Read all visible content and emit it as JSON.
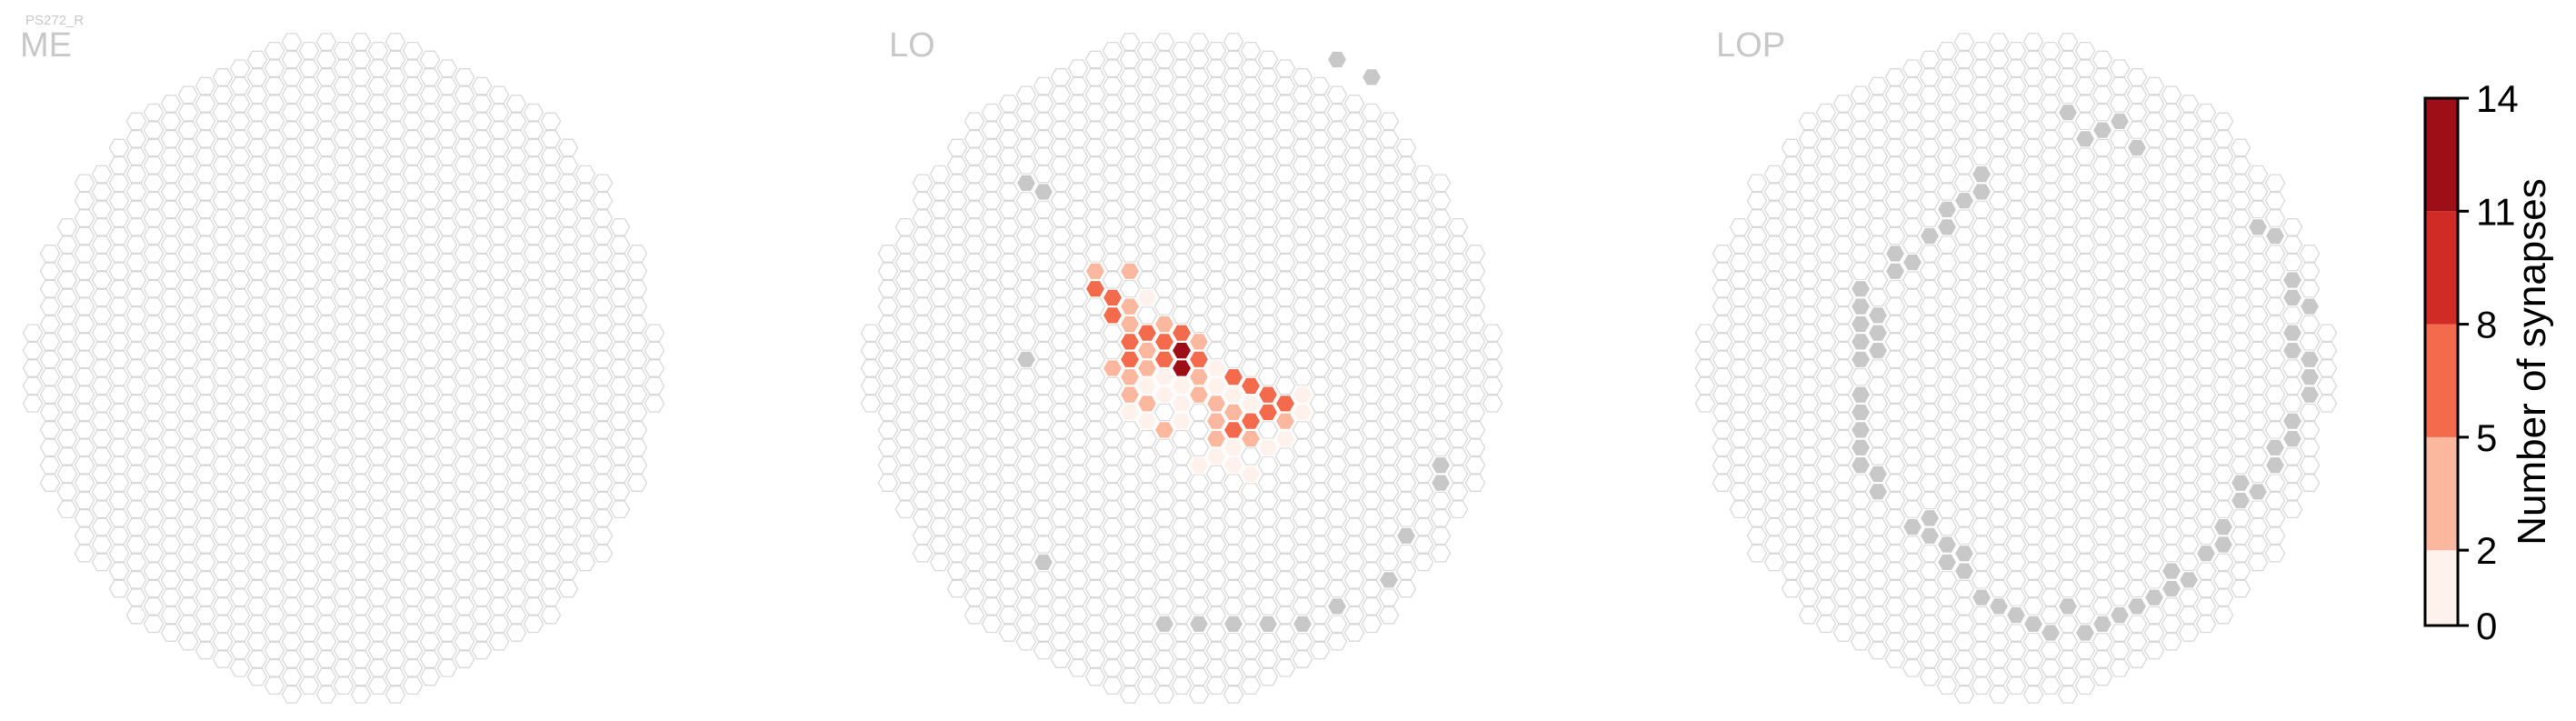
{
  "cell_type": "PS272_R",
  "colors": {
    "empty_fill": "#ffffff",
    "empty_stroke": "#d9d9d9",
    "boundary_fill": "#c8c8c8",
    "label": "#c8c8c8",
    "bins": [
      "#fff1ec",
      "#fbb89e",
      "#f46a4c",
      "#d02b25",
      "#9e0e17"
    ]
  },
  "chart_data": {
    "type": "heatmap",
    "value_label": "Number of synapses",
    "scale": {
      "min": 0,
      "max": 14,
      "bin_edges": [
        0,
        2,
        5,
        8,
        11,
        14
      ],
      "ticks": [
        "0",
        "2",
        "5",
        "8",
        "11",
        "14"
      ]
    },
    "panels": [
      {
        "region": "ME",
        "boundary_cells": [],
        "cells": []
      },
      {
        "region": "LO",
        "boundary_cells": [
          [
            -9,
            10
          ],
          [
            -8,
            10
          ],
          [
            -9,
            0
          ],
          [
            -8,
            -11
          ],
          [
            -1,
            -15
          ],
          [
            1,
            -15
          ],
          [
            3,
            -15
          ],
          [
            5,
            -15
          ],
          [
            7,
            -15
          ],
          [
            9,
            -14
          ],
          [
            12,
            -12
          ],
          [
            13,
            -10
          ],
          [
            15,
            -7
          ],
          [
            15,
            -6
          ],
          [
            9,
            17
          ],
          [
            11,
            16
          ]
        ],
        "cells": [
          {
            "ho": -5,
            "vo": 5,
            "value": 4
          },
          {
            "ho": -5,
            "vo": 4,
            "value": 5
          },
          {
            "ho": -4,
            "vo": 4,
            "value": 5
          },
          {
            "ho": -4,
            "vo": 3,
            "value": 6
          },
          {
            "ho": -3,
            "vo": 5,
            "value": 4
          },
          {
            "ho": -2,
            "vo": 4,
            "value": 1
          },
          {
            "ho": -3,
            "vo": 3,
            "value": 4
          },
          {
            "ho": -3,
            "vo": 2,
            "value": 3
          },
          {
            "ho": -2,
            "vo": 2,
            "value": 5
          },
          {
            "ho": -1,
            "vo": 2,
            "value": 4
          },
          {
            "ho": 0,
            "vo": 2,
            "value": 7
          },
          {
            "ho": -3,
            "vo": 1,
            "value": 5
          },
          {
            "ho": -2,
            "vo": 1,
            "value": 4
          },
          {
            "ho": -1,
            "vo": 1,
            "value": 6
          },
          {
            "ho": 0,
            "vo": 1,
            "value": 12
          },
          {
            "ho": 1,
            "vo": 1,
            "value": 3
          },
          {
            "ho": -4,
            "vo": 0,
            "value": 4
          },
          {
            "ho": -3,
            "vo": 0,
            "value": 5
          },
          {
            "ho": -2,
            "vo": 0,
            "value": 3
          },
          {
            "ho": -1,
            "vo": 0,
            "value": 6
          },
          {
            "ho": 0,
            "vo": 0,
            "value": 13
          },
          {
            "ho": 1,
            "vo": 0,
            "value": 6
          },
          {
            "ho": 2,
            "vo": 0,
            "value": 1
          },
          {
            "ho": -3,
            "vo": -1,
            "value": 4
          },
          {
            "ho": -2,
            "vo": -1,
            "value": 1
          },
          {
            "ho": -1,
            "vo": -1,
            "value": 1
          },
          {
            "ho": 0,
            "vo": -1,
            "value": 1
          },
          {
            "ho": 1,
            "vo": -1,
            "value": 4
          },
          {
            "ho": 2,
            "vo": -1,
            "value": 1
          },
          {
            "ho": 3,
            "vo": -1,
            "value": 7
          },
          {
            "ho": 4,
            "vo": -1,
            "value": 6
          },
          {
            "ho": -3,
            "vo": -2,
            "value": 3
          },
          {
            "ho": -2,
            "vo": -2,
            "value": 4
          },
          {
            "ho": -1,
            "vo": -2,
            "value": 1
          },
          {
            "ho": 0,
            "vo": -2,
            "value": 1
          },
          {
            "ho": 1,
            "vo": -2,
            "value": 3
          },
          {
            "ho": 2,
            "vo": -2,
            "value": 4
          },
          {
            "ho": 3,
            "vo": -2,
            "value": 1
          },
          {
            "ho": 4,
            "vo": -2,
            "value": 1
          },
          {
            "ho": 5,
            "vo": -2,
            "value": 6
          },
          {
            "ho": 6,
            "vo": -2,
            "value": 7
          },
          {
            "ho": 7,
            "vo": -2,
            "value": 1
          },
          {
            "ho": -3,
            "vo": -3,
            "value": 1
          },
          {
            "ho": -2,
            "vo": -3,
            "value": 1
          },
          {
            "ho": 0,
            "vo": -3,
            "value": 1
          },
          {
            "ho": 2,
            "vo": -3,
            "value": 3
          },
          {
            "ho": 3,
            "vo": -3,
            "value": 3
          },
          {
            "ho": 4,
            "vo": -3,
            "value": 7
          },
          {
            "ho": 5,
            "vo": -3,
            "value": 5
          },
          {
            "ho": 6,
            "vo": -3,
            "value": 4
          },
          {
            "ho": 7,
            "vo": -3,
            "value": 1
          },
          {
            "ho": -1,
            "vo": -4,
            "value": 4
          },
          {
            "ho": 2,
            "vo": -4,
            "value": 3
          },
          {
            "ho": 3,
            "vo": -4,
            "value": 7
          },
          {
            "ho": 4,
            "vo": -4,
            "value": 3
          },
          {
            "ho": 6,
            "vo": -4,
            "value": 1
          },
          {
            "ho": 2,
            "vo": -5,
            "value": 1
          },
          {
            "ho": 3,
            "vo": -5,
            "value": 1
          },
          {
            "ho": 5,
            "vo": -5,
            "value": 1
          },
          {
            "ho": 1,
            "vo": -6,
            "value": 1
          },
          {
            "ho": 3,
            "vo": -6,
            "value": 1
          },
          {
            "ho": 4,
            "vo": -6,
            "value": 1
          }
        ]
      },
      {
        "region": "LOP",
        "boundary_cells": [
          [
            -9,
            -2
          ],
          [
            -9,
            -3
          ],
          [
            -9,
            -4
          ],
          [
            -9,
            -5
          ],
          [
            -9,
            -6
          ],
          [
            -8,
            -6
          ],
          [
            -8,
            -7
          ],
          [
            -9,
            0
          ],
          [
            -9,
            1
          ],
          [
            -9,
            2
          ],
          [
            -9,
            3
          ],
          [
            -9,
            4
          ],
          [
            -8,
            1
          ],
          [
            -8,
            2
          ],
          [
            -8,
            3
          ],
          [
            -7,
            5
          ],
          [
            -7,
            6
          ],
          [
            -6,
            6
          ],
          [
            -5,
            7
          ],
          [
            -4,
            8
          ],
          [
            -4,
            9
          ],
          [
            -3,
            9
          ],
          [
            -2,
            10
          ],
          [
            -2,
            11
          ],
          [
            -6,
            -9
          ],
          [
            -5,
            -9
          ],
          [
            -5,
            -10
          ],
          [
            -4,
            -10
          ],
          [
            -4,
            -11
          ],
          [
            -3,
            -11
          ],
          [
            -3,
            -12
          ],
          [
            -2,
            -13
          ],
          [
            -1,
            -14
          ],
          [
            0,
            -14
          ],
          [
            1,
            -15
          ],
          [
            2,
            -15
          ],
          [
            3,
            -14
          ],
          [
            4,
            -15
          ],
          [
            5,
            -15
          ],
          [
            6,
            -14
          ],
          [
            7,
            -14
          ],
          [
            3,
            14
          ],
          [
            4,
            13
          ],
          [
            5,
            13
          ],
          [
            6,
            14
          ],
          [
            7,
            12
          ],
          [
            15,
            -6
          ],
          [
            15,
            -5
          ],
          [
            16,
            -4
          ],
          [
            16,
            -3
          ],
          [
            17,
            -2
          ],
          [
            17,
            -1
          ],
          [
            17,
            0
          ],
          [
            16,
            1
          ],
          [
            16,
            2
          ],
          [
            17,
            3
          ],
          [
            16,
            4
          ],
          [
            16,
            5
          ],
          [
            15,
            7
          ],
          [
            14,
            8
          ],
          [
            13,
            -7
          ],
          [
            13,
            -8
          ],
          [
            14,
            -7
          ],
          [
            12,
            -9
          ],
          [
            12,
            -10
          ],
          [
            11,
            -11
          ],
          [
            10,
            -12
          ],
          [
            9,
            -13
          ],
          [
            9,
            -12
          ],
          [
            8,
            -13
          ]
        ],
        "cells": []
      }
    ]
  }
}
